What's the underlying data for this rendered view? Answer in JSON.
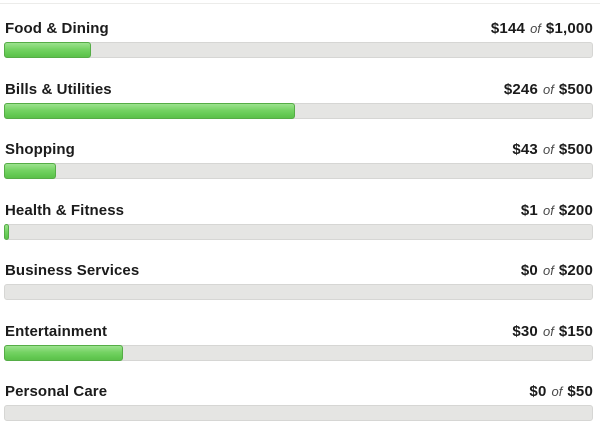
{
  "labels": {
    "of": "of"
  },
  "rows": [
    {
      "category": "Food & Dining",
      "spent": "$144",
      "budget": "$1,000",
      "percent": 14.4
    },
    {
      "category": "Bills & Utilities",
      "spent": "$246",
      "budget": "$500",
      "percent": 49.2
    },
    {
      "category": "Shopping",
      "spent": "$43",
      "budget": "$500",
      "percent": 8.6
    },
    {
      "category": "Health & Fitness",
      "spent": "$1",
      "budget": "$200",
      "percent": 0.5
    },
    {
      "category": "Business Services",
      "spent": "$0",
      "budget": "$200",
      "percent": 0
    },
    {
      "category": "Entertainment",
      "spent": "$30",
      "budget": "$150",
      "percent": 20
    },
    {
      "category": "Personal Care",
      "spent": "$0",
      "budget": "$50",
      "percent": 0
    }
  ],
  "colors": {
    "text": "#1b1b1b",
    "of_text": "#4a4a4a",
    "track_background": "#e5e5e3",
    "track_border": "#d6d6d4",
    "fill_green_light": "#9ce28e",
    "fill_green": "#74d263",
    "fill_green_dark": "#5cc04b",
    "fill_border": "#55ad46",
    "top_hairline": "#ececea"
  },
  "chart_data": {
    "type": "bar",
    "orientation": "horizontal",
    "categories": [
      "Food & Dining",
      "Bills & Utilities",
      "Shopping",
      "Health & Fitness",
      "Business Services",
      "Entertainment",
      "Personal Care"
    ],
    "series": [
      {
        "name": "spent",
        "values": [
          144,
          246,
          43,
          1,
          0,
          30,
          0
        ]
      },
      {
        "name": "budget",
        "values": [
          1000,
          500,
          500,
          200,
          200,
          150,
          50
        ]
      }
    ],
    "value_format": "USD",
    "legend": "none",
    "grid": "off"
  }
}
